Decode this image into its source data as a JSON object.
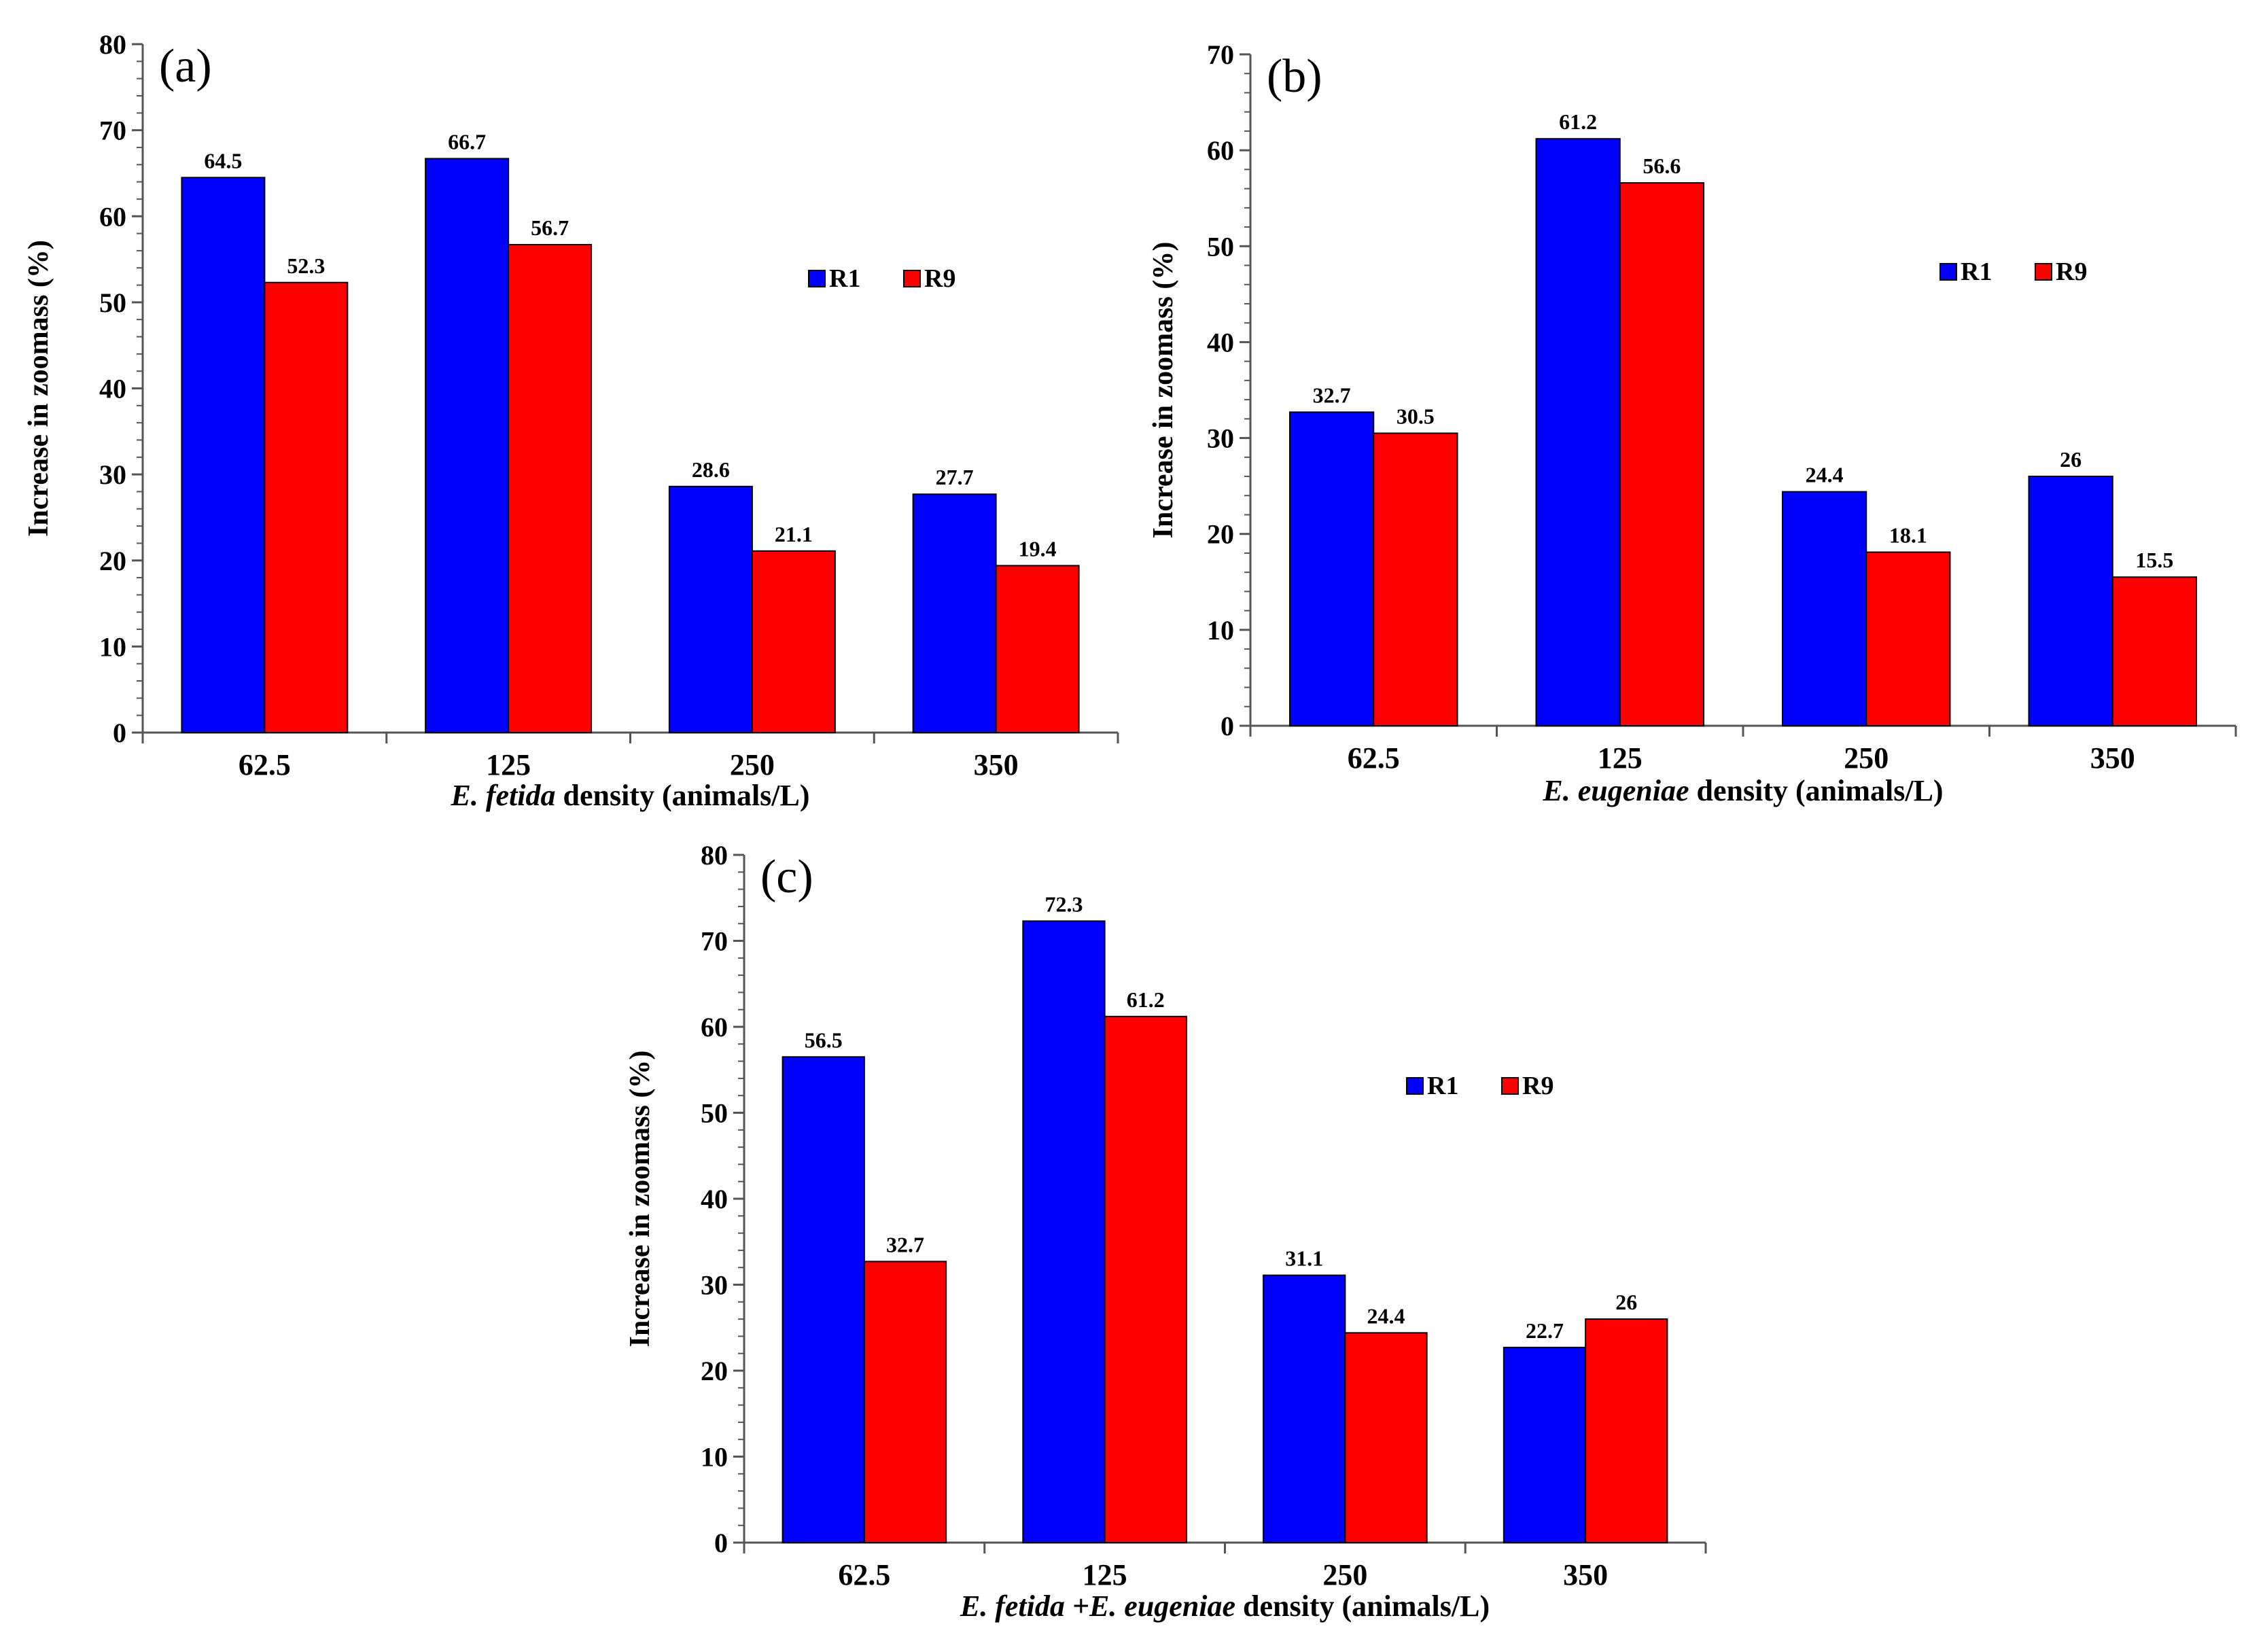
{
  "chart_data": [
    {
      "type": "bar",
      "panel_label": "(a)",
      "categories": [
        "62.5",
        "125",
        "250",
        "350"
      ],
      "series": [
        {
          "name": "R1",
          "color": "#0000ff",
          "values": [
            64.5,
            66.7,
            28.6,
            27.7
          ],
          "labels": [
            "64.5",
            "66.7",
            "28.6",
            "27.7"
          ]
        },
        {
          "name": "R9",
          "color": "#ff0000",
          "values": [
            52.3,
            56.7,
            21.1,
            19.4
          ],
          "labels": [
            "52.3",
            "56.7",
            "21.1",
            "19.4"
          ]
        }
      ],
      "ylim": [
        0,
        80
      ],
      "yticks": [
        "0",
        "10",
        "20",
        "30",
        "40",
        "50",
        "60",
        "70",
        "80"
      ],
      "ylabel": "Increase in zoomass  (%)",
      "xlabel_italic": "E. fetida",
      "xlabel_rest": " density (animals/L)",
      "legend": "right-middle",
      "grid": false
    },
    {
      "type": "bar",
      "panel_label": "(b)",
      "categories": [
        "62.5",
        "125",
        "250",
        "350"
      ],
      "series": [
        {
          "name": "R1",
          "color": "#0000ff",
          "values": [
            32.7,
            61.2,
            24.4,
            26
          ],
          "labels": [
            "32.7",
            "61.2",
            "24.4",
            "26"
          ]
        },
        {
          "name": "R9",
          "color": "#ff0000",
          "values": [
            30.5,
            56.6,
            18.1,
            15.5
          ],
          "labels": [
            "30.5",
            "56.6",
            "18.1",
            "15.5"
          ]
        }
      ],
      "ylim": [
        0,
        70
      ],
      "yticks": [
        "0",
        "10",
        "20",
        "30",
        "40",
        "50",
        "60",
        "70"
      ],
      "ylabel": "Increase in zoomass (%)",
      "xlabel_italic": "E. eugeniae",
      "xlabel_rest": " density (animals/L)",
      "legend": "right-middle",
      "grid": false
    },
    {
      "type": "bar",
      "panel_label": "(c)",
      "categories": [
        "62.5",
        "125",
        "250",
        "350"
      ],
      "series": [
        {
          "name": "R1",
          "color": "#0000ff",
          "values": [
            56.5,
            72.3,
            31.1,
            22.7
          ],
          "labels": [
            "56.5",
            "72.3",
            "31.1",
            "22.7"
          ]
        },
        {
          "name": "R9",
          "color": "#ff0000",
          "values": [
            32.7,
            61.2,
            24.4,
            26
          ],
          "labels": [
            "32.7",
            "61.2",
            "24.4",
            "26"
          ]
        }
      ],
      "ylim": [
        0,
        80
      ],
      "yticks": [
        "0",
        "10",
        "20",
        "30",
        "40",
        "50",
        "60",
        "70",
        "80"
      ],
      "ylabel": "Increase in zoomass (%)",
      "xlabel_italic": "E. fetida +E. eugeniae",
      "xlabel_rest": "  density (animals/L)",
      "legend": "right-middle",
      "grid": false
    }
  ]
}
